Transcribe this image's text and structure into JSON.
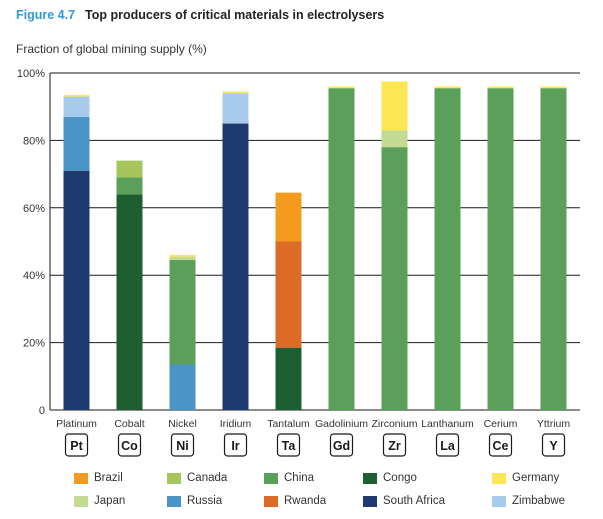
{
  "figure": {
    "number": "Figure 4.7",
    "title": "Top producers of critical materials in electrolysers"
  },
  "chart_data": {
    "type": "bar",
    "stacked": true,
    "ylabel": "Fraction of global mining supply (%)",
    "ylim": [
      0,
      100
    ],
    "yticks": [
      0,
      20,
      40,
      60,
      80,
      100
    ],
    "ytick_labels": [
      "0",
      "20%",
      "40%",
      "60%",
      "80%",
      "100%"
    ],
    "categories": [
      "Platinum",
      "Cobalt",
      "Nickel",
      "Iridium",
      "Tantalum",
      "Gadolinium",
      "Zirconium",
      "Lanthanum",
      "Cerium",
      "Yttrium"
    ],
    "symbols": [
      "Pt",
      "Co",
      "Ni",
      "Ir",
      "Ta",
      "Gd",
      "Zr",
      "La",
      "Ce",
      "Y"
    ],
    "series": [
      {
        "name": "South Africa",
        "color": "#1f3a6e",
        "values": [
          71,
          0,
          0,
          85,
          0,
          0,
          0,
          0,
          0,
          0
        ]
      },
      {
        "name": "Congo",
        "color": "#1f5e30",
        "values": [
          0,
          64,
          0,
          0,
          18.5,
          0,
          0,
          0,
          0,
          0
        ]
      },
      {
        "name": "Russia",
        "color": "#4b94c6",
        "values": [
          16,
          0,
          13.5,
          0,
          0,
          0,
          0,
          0,
          0,
          0
        ]
      },
      {
        "name": "China",
        "color": "#5ba05a",
        "values": [
          0,
          5,
          31,
          0,
          0,
          95.5,
          78,
          95.5,
          95.5,
          95.5
        ]
      },
      {
        "name": "Rwanda",
        "color": "#dc6b28",
        "values": [
          0,
          0,
          0,
          0,
          31.5,
          0,
          0,
          0,
          0,
          0
        ]
      },
      {
        "name": "Brazil",
        "color": "#f39a1f",
        "values": [
          0,
          0,
          0,
          0,
          14.5,
          0,
          0,
          0,
          0,
          0
        ]
      },
      {
        "name": "Canada",
        "color": "#a6c65c",
        "values": [
          0,
          5,
          0,
          0,
          0,
          0,
          0,
          0,
          0,
          0
        ]
      },
      {
        "name": "Japan",
        "color": "#c3db93",
        "values": [
          0,
          0,
          1,
          0,
          0,
          0,
          5,
          0,
          0,
          0
        ]
      },
      {
        "name": "Zimbabwe",
        "color": "#a9cbeb",
        "values": [
          6,
          0,
          0,
          9,
          0,
          0,
          0,
          0,
          0,
          0
        ]
      },
      {
        "name": "Germany",
        "color": "#fbe653",
        "values": [
          0.5,
          0,
          0.5,
          0.5,
          0,
          0.5,
          14.5,
          0.5,
          0.5,
          0.5
        ]
      }
    ],
    "legend_order": [
      "Brazil",
      "Canada",
      "China",
      "Congo",
      "Germany",
      "Japan",
      "Russia",
      "Rwanda",
      "South Africa",
      "Zimbabwe"
    ]
  }
}
